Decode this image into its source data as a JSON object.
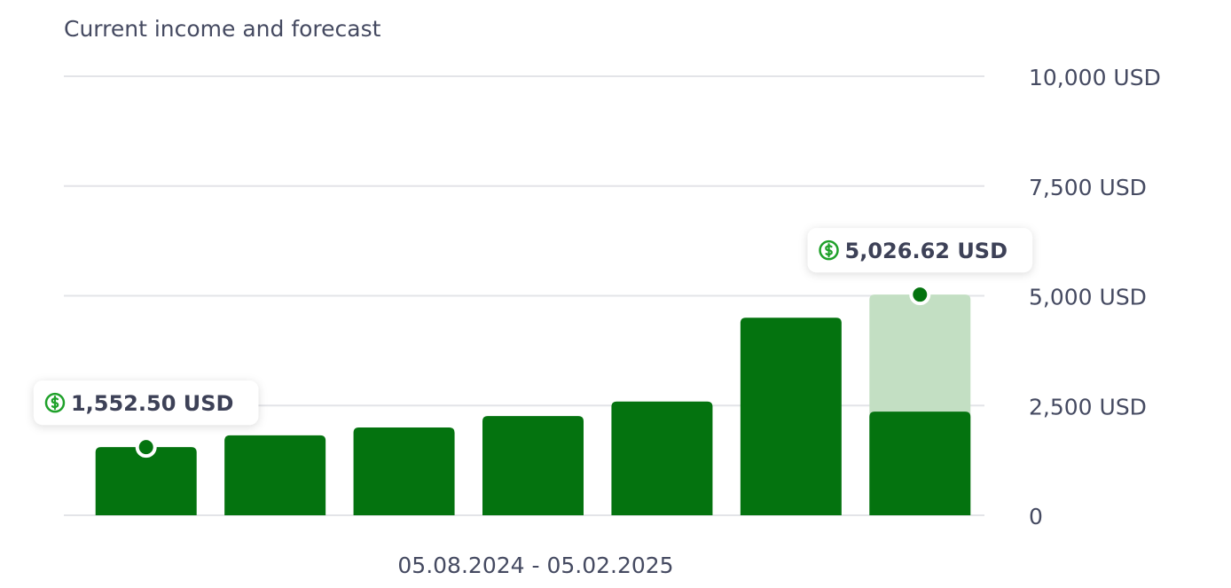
{
  "chart_data": {
    "type": "bar",
    "title": "Current income and forecast",
    "x_label": "05.08.2024 - 05.02.2025",
    "categories": [
      null,
      null,
      null,
      null,
      null,
      null,
      null
    ],
    "series": [
      {
        "color": "#04730f",
        "values": [
          1552.5,
          1820,
          2000,
          2260,
          2590,
          4500,
          2360
        ],
        "value_labels": [
          "1,552.50 USD",
          null,
          null,
          null,
          null,
          null,
          null
        ]
      },
      {
        "color": "#c3dfc3",
        "values": [
          null,
          null,
          null,
          null,
          null,
          null,
          5026.62
        ],
        "value_labels": [
          null,
          null,
          null,
          null,
          null,
          null,
          "5,026.62 USD"
        ]
      }
    ],
    "ylim": [
      0,
      10000
    ],
    "yticks": [
      0,
      {
        "value": 2500,
        "label": "2,500 USD"
      },
      {
        "value": 5000,
        "label": "5,000 USD"
      },
      {
        "value": 7500,
        "label": "7,500 USD"
      },
      {
        "value": 10000,
        "label": "10,000 USD"
      }
    ],
    "grid": true
  }
}
